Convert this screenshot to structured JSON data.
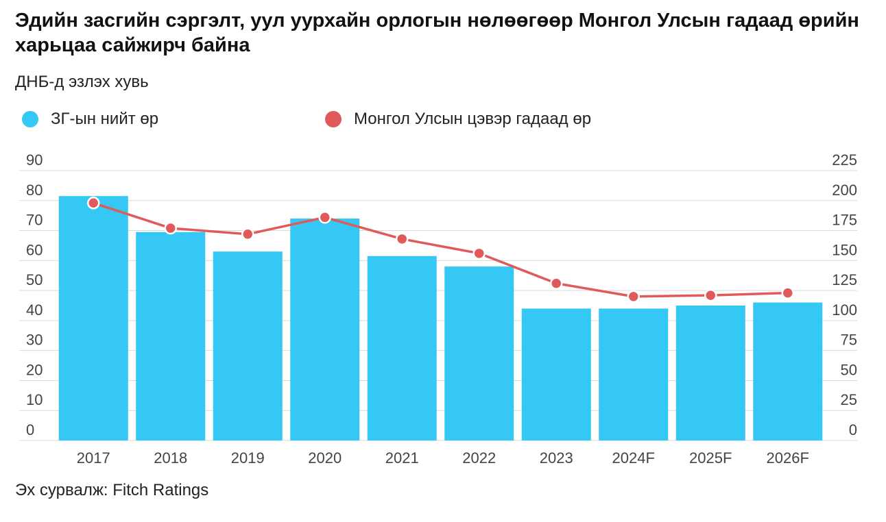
{
  "title": "Эдийн засгийн сэргэлт, уул уурхайн орлогын нөлөөгөөр Монгол Улсын гадаад өрийн харьцаа сайжирч байна",
  "subtitle": "ДНБ-д эзлэх хувь",
  "source": "Эх сурвалж: Fitch Ratings",
  "colors": {
    "bars": "#35c8f5",
    "line": "#e05a5a",
    "grid": "#d9d9d9"
  },
  "chart_data": {
    "type": "bar+line",
    "categories": [
      "2017",
      "2018",
      "2019",
      "2020",
      "2021",
      "2022",
      "2023",
      "2024F",
      "2025F",
      "2026F"
    ],
    "series": [
      {
        "name": "ЗГ-ын нийт өр",
        "type": "bar",
        "axis": "left",
        "values": [
          81.5,
          69.5,
          63,
          74,
          61.5,
          58,
          44,
          44,
          45,
          46
        ]
      },
      {
        "name": "Монгол Улсын цэвэр гадаад өр",
        "type": "line",
        "axis": "right",
        "values": [
          198,
          177,
          172,
          186,
          168,
          156,
          131,
          120,
          121,
          123
        ]
      }
    ],
    "y_left": {
      "ticks": [
        "0",
        "10",
        "20",
        "30",
        "40",
        "50",
        "60",
        "70",
        "80",
        "90"
      ],
      "min": 0,
      "max": 90
    },
    "y_right": {
      "ticks": [
        "0",
        "25",
        "50",
        "75",
        "100",
        "125",
        "150",
        "175",
        "200",
        "225"
      ],
      "min": 0,
      "max": 225
    },
    "grid": true,
    "legend": "top-left"
  }
}
